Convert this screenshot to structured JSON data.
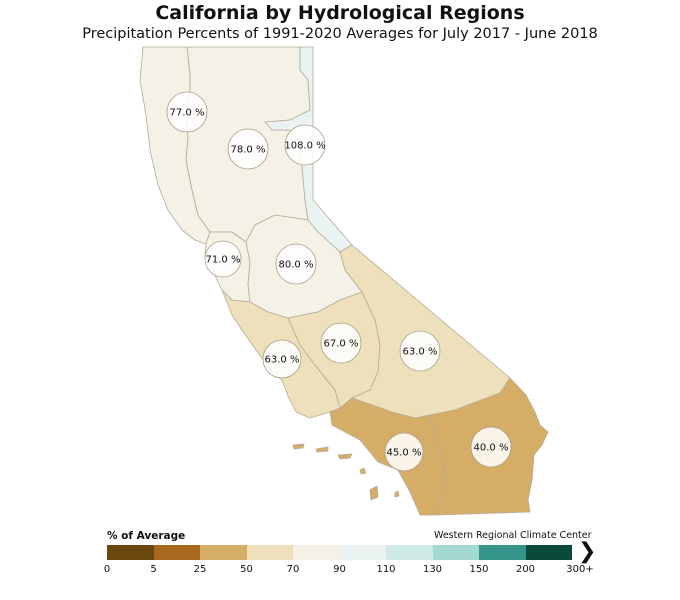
{
  "title": "California by Hydrological Regions",
  "subtitle": "Precipitation Percents of 1991-2020 Averages for July 2017 - June 2018",
  "regions": [
    {
      "id": "north-coast",
      "label": "77.0 %",
      "value": 77.0,
      "fill": "#f4f1e6"
    },
    {
      "id": "sacramento-river",
      "label": "78.0 %",
      "value": 78.0,
      "fill": "#f4f1e6"
    },
    {
      "id": "north-lahontan",
      "label": "108.0 %",
      "value": 108.0,
      "fill": "#eaf3f1"
    },
    {
      "id": "san-francisco-bay",
      "label": "71.0 %",
      "value": 71.0,
      "fill": "#f4f1e6"
    },
    {
      "id": "san-joaquin-river",
      "label": "80.0 %",
      "value": 80.0,
      "fill": "#f4f1e6"
    },
    {
      "id": "central-coast",
      "label": "63.0 %",
      "value": 63.0,
      "fill": "#ede0bb"
    },
    {
      "id": "tulare-lake",
      "label": "67.0 %",
      "value": 67.0,
      "fill": "#ede0bb"
    },
    {
      "id": "south-lahontan",
      "label": "63.0 %",
      "value": 63.0,
      "fill": "#ede0bb"
    },
    {
      "id": "south-coast",
      "label": "45.0 %",
      "value": 45.0,
      "fill": "#d6ad66"
    },
    {
      "id": "colorado-river",
      "label": "40.0 %",
      "value": 40.0,
      "fill": "#d6ad66"
    }
  ],
  "legend": {
    "title": "% of Average",
    "credit": "Western Regional Climate Center",
    "colors": [
      "#6b4710",
      "#a8691e",
      "#d6ad66",
      "#ede0bb",
      "#f4f1e6",
      "#eaf3f1",
      "#d0eae6",
      "#a3d9d0",
      "#35958a",
      "#0b4a3a"
    ],
    "ticks": [
      "0",
      "5",
      "25",
      "50",
      "70",
      "90",
      "110",
      "130",
      "150",
      "200",
      "300+"
    ]
  }
}
